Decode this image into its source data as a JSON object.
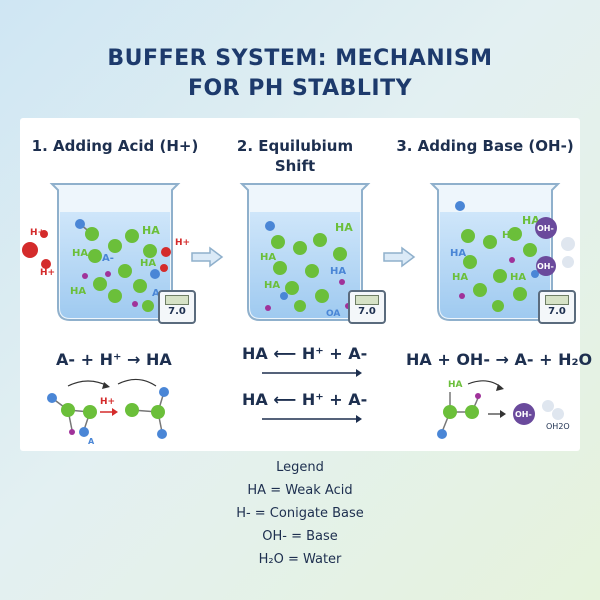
{
  "title_line1": "BUFFER SYSTEM: MECHANISM",
  "title_line2": "FOR PH STABLITY",
  "steps": [
    {
      "label": "1. Adding Acid (H+)"
    },
    {
      "label_line1": "2. Equilubium",
      "label_line2": "Shift"
    },
    {
      "label": "3. Adding Base (OH-)"
    }
  ],
  "meter_value": "7.0",
  "ions": {
    "h_plus": "H+",
    "oh_minus": "OH-",
    "ha": "HA",
    "a": "A",
    "a_minus": "A-",
    "oa": "OA",
    "oh2o": "OH2O"
  },
  "equations": {
    "step1": "A- + H⁺ → HA",
    "step2a": "HA ⟵ H⁺ + A-",
    "step2b": "HA ⟵ H⁺ + A-",
    "step3": "HA + OH- → A- + H₂O"
  },
  "legend": {
    "heading": "Legend",
    "items": [
      "HA = Weak Acid",
      "H- = Conigate Base",
      "OH- = Base",
      "H₂O = Water"
    ]
  },
  "colors": {
    "title": "#1d3a6c",
    "acid_red": "#d42b2b",
    "green": "#6bbf3a",
    "blue": "#4a86d6",
    "purple": "#6a4a9c",
    "water": "#bcd0e6"
  }
}
